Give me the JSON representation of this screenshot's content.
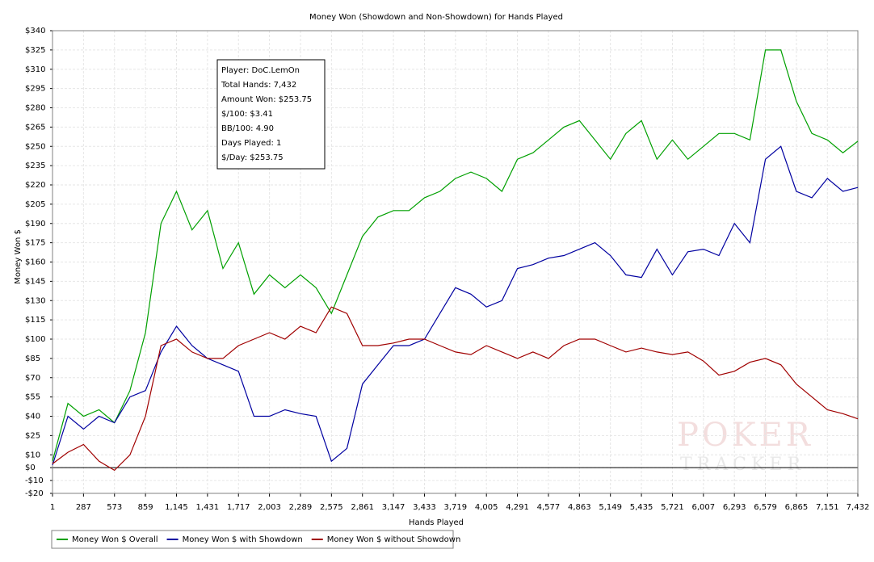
{
  "chart_data": {
    "type": "line",
    "title": "Money Won (Showdown and Non-Showdown) for Hands Played",
    "x_label": "Hands Played",
    "y_label": "Money Won $",
    "grid": true,
    "legend": "bottom-left",
    "annotation": [
      "Player: DoC.LemOn",
      "Total Hands: 7,432",
      "Amount Won: $253.75",
      "$/100: $3.41",
      "BB/100: 4.90",
      "Days Played: 1",
      "$/Day: $253.75"
    ],
    "watermark": [
      "POKER",
      "TRACKER"
    ],
    "xlim": [
      1,
      7432
    ],
    "xticks": [
      1,
      287,
      573,
      859,
      {
        "value": 1145,
        "label": "1,145"
      },
      {
        "value": 1431,
        "label": "1,431"
      },
      {
        "value": 1717,
        "label": "1,717"
      },
      {
        "value": 2003,
        "label": "2,003"
      },
      {
        "value": 2289,
        "label": "2,289"
      },
      {
        "value": 2575,
        "label": "2,575"
      },
      {
        "value": 2861,
        "label": "2,861"
      },
      {
        "value": 3147,
        "label": "3,147"
      },
      {
        "value": 3433,
        "label": "3,433"
      },
      {
        "value": 3719,
        "label": "3,719"
      },
      {
        "value": 4005,
        "label": "4,005"
      },
      {
        "value": 4291,
        "label": "4,291"
      },
      {
        "value": 4577,
        "label": "4,577"
      },
      {
        "value": 4863,
        "label": "4,863"
      },
      {
        "value": 5149,
        "label": "5,149"
      },
      {
        "value": 5435,
        "label": "5,435"
      },
      {
        "value": 5721,
        "label": "5,721"
      },
      {
        "value": 6007,
        "label": "6,007"
      },
      {
        "value": 6293,
        "label": "6,293"
      },
      {
        "value": 6579,
        "label": "6,579"
      },
      {
        "value": 6865,
        "label": "6,865"
      },
      {
        "value": 7151,
        "label": "7,151"
      },
      {
        "value": 7432,
        "label": "7,432"
      }
    ],
    "ylim": [
      -20,
      340
    ],
    "yticks": [
      {
        "value": -20,
        "label": "-$20"
      },
      {
        "value": -10,
        "label": "-$10"
      },
      {
        "value": 0,
        "label": "$0"
      },
      {
        "value": 10,
        "label": "$10"
      },
      {
        "value": 25,
        "label": "$25"
      },
      {
        "value": 40,
        "label": "$40"
      },
      {
        "value": 55,
        "label": "$55"
      },
      {
        "value": 70,
        "label": "$70"
      },
      {
        "value": 85,
        "label": "$85"
      },
      {
        "value": 100,
        "label": "$100"
      },
      {
        "value": 115,
        "label": "$115"
      },
      {
        "value": 130,
        "label": "$130"
      },
      {
        "value": 145,
        "label": "$145"
      },
      {
        "value": 160,
        "label": "$160"
      },
      {
        "value": 175,
        "label": "$175"
      },
      {
        "value": 190,
        "label": "$190"
      },
      {
        "value": 205,
        "label": "$205"
      },
      {
        "value": 220,
        "label": "$220"
      },
      {
        "value": 235,
        "label": "$235"
      },
      {
        "value": 250,
        "label": "$250"
      },
      {
        "value": 265,
        "label": "$265"
      },
      {
        "value": 280,
        "label": "$280"
      },
      {
        "value": 295,
        "label": "$295"
      },
      {
        "value": 310,
        "label": "$310"
      },
      {
        "value": 325,
        "label": "$325"
      },
      {
        "value": 340,
        "label": "$340"
      }
    ],
    "x": [
      1,
      143,
      287,
      430,
      573,
      716,
      859,
      1002,
      1145,
      1288,
      1431,
      1574,
      1717,
      1860,
      2003,
      2146,
      2289,
      2432,
      2575,
      2718,
      2861,
      3004,
      3147,
      3290,
      3433,
      3576,
      3719,
      3862,
      4005,
      4148,
      4291,
      4434,
      4577,
      4720,
      4863,
      5006,
      5149,
      5292,
      5435,
      5578,
      5721,
      5864,
      6007,
      6150,
      6293,
      6436,
      6579,
      6722,
      6865,
      7008,
      7151,
      7294,
      7432
    ],
    "series": [
      {
        "name": "Money Won $ Overall",
        "color": "#00a000",
        "values": [
          5,
          50,
          40,
          45,
          35,
          60,
          105,
          190,
          215,
          185,
          200,
          155,
          175,
          135,
          150,
          140,
          150,
          140,
          120,
          150,
          180,
          195,
          200,
          200,
          210,
          215,
          225,
          230,
          225,
          215,
          240,
          245,
          255,
          265,
          270,
          255,
          240,
          260,
          270,
          240,
          255,
          240,
          250,
          260,
          260,
          255,
          325,
          325,
          285,
          260,
          255,
          245,
          254
        ]
      },
      {
        "name": "Money Won $ with Showdown",
        "color": "#0000a0",
        "values": [
          2,
          40,
          30,
          40,
          35,
          55,
          60,
          90,
          110,
          95,
          85,
          80,
          75,
          40,
          40,
          45,
          42,
          40,
          5,
          15,
          65,
          80,
          95,
          95,
          100,
          120,
          140,
          135,
          125,
          130,
          155,
          158,
          163,
          165,
          170,
          175,
          165,
          150,
          148,
          170,
          150,
          168,
          170,
          165,
          190,
          175,
          240,
          250,
          215,
          210,
          225,
          215,
          218
        ]
      },
      {
        "name": "Money Won $ without Showdown",
        "color": "#a00000",
        "values": [
          3,
          12,
          18,
          5,
          -2,
          10,
          40,
          95,
          100,
          90,
          85,
          85,
          95,
          100,
          105,
          100,
          110,
          105,
          125,
          120,
          95,
          95,
          97,
          100,
          100,
          95,
          90,
          88,
          95,
          90,
          85,
          90,
          85,
          95,
          100,
          100,
          95,
          90,
          93,
          90,
          88,
          90,
          83,
          72,
          75,
          82,
          85,
          80,
          65,
          55,
          45,
          42,
          38
        ]
      }
    ]
  }
}
